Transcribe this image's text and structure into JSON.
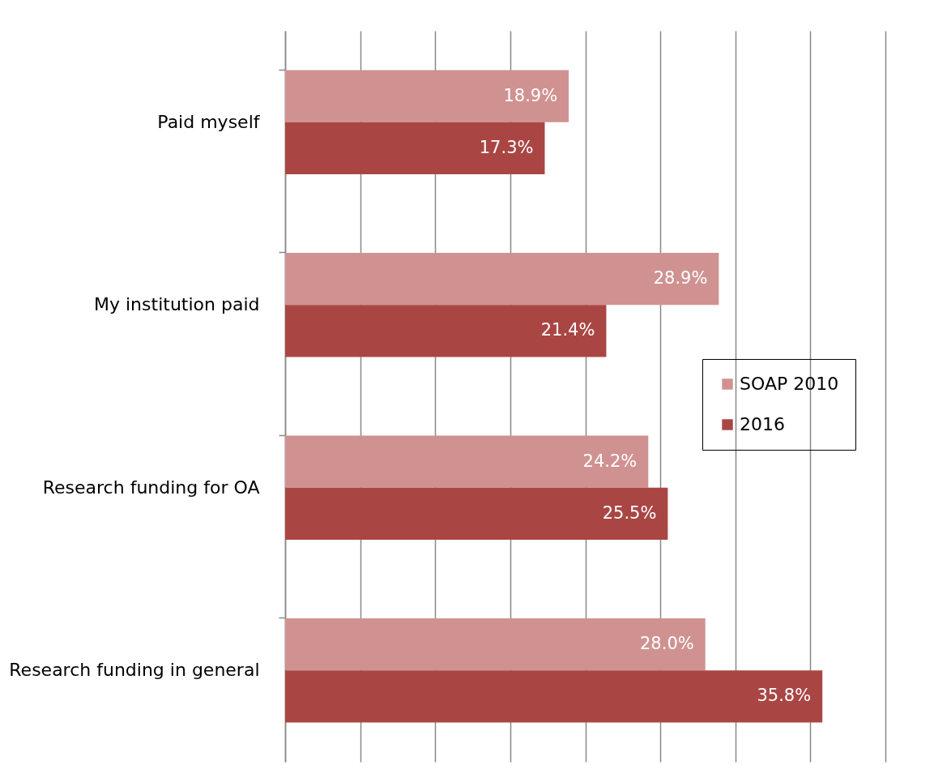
{
  "chart_data": {
    "type": "bar",
    "orientation": "horizontal",
    "categories": [
      "Paid myself",
      "My institution paid",
      "Research funding for OA",
      "Research funding in general"
    ],
    "series": [
      {
        "name": "SOAP 2010",
        "color": "#d09291",
        "values": [
          18.9,
          28.9,
          24.2,
          28.0
        ],
        "value_labels": [
          "18.9%",
          "28.9%",
          "24.2%",
          "28.0%"
        ]
      },
      {
        "name": "2016",
        "color": "#a94644",
        "values": [
          17.3,
          21.4,
          25.5,
          35.8
        ],
        "value_labels": [
          "17.3%",
          "21.4%",
          "25.5%",
          "35.8%"
        ]
      }
    ],
    "xlim": [
      0,
      40
    ],
    "xticks": [
      {
        "value": 0,
        "label": null
      },
      {
        "value": 5,
        "label": null
      },
      {
        "value": 10,
        "label": null
      },
      {
        "value": 15,
        "label": null
      },
      {
        "value": 20,
        "label": null
      },
      {
        "value": 25,
        "label": null
      },
      {
        "value": 30,
        "label": null
      },
      {
        "value": 35,
        "label": null
      },
      {
        "value": 40,
        "label": null
      }
    ],
    "grid": "x",
    "tick_labels": "y",
    "legend": "right"
  }
}
